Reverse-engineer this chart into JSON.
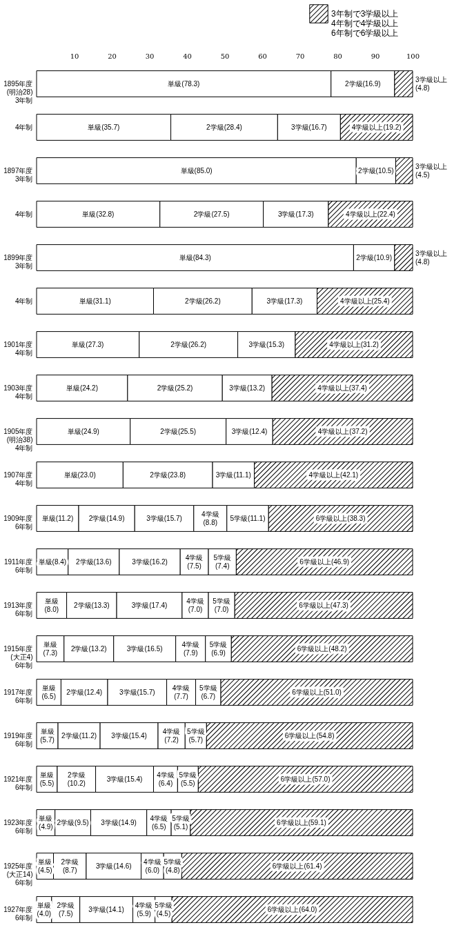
{
  "chart_data": {
    "type": "bar",
    "orientation": "horizontal",
    "stacked": true,
    "legend": "top right",
    "categories": [
      "1895年度 (明治28) 3年制",
      "4年制",
      "1897年度 3年制",
      "4年制",
      "1899年度 3年制",
      "4年制",
      "1901年度 4年制",
      "1903年度 4年制",
      "1905年度 (明治38) 4年制",
      "1907年度 4年制",
      "1909年度 6年制",
      "1911年度 6年制",
      "1913年度 6年制",
      "1915年度 (大正4) 6年制",
      "1917年度 6年制",
      "1919年度 6年制",
      "1921年度 6年制",
      "1923年度 6年制",
      "1925年度 (大正14) 6年制",
      "1927年度 6年制"
    ],
    "xlim": [
      0,
      100
    ],
    "xticks": [
      10,
      20,
      30,
      40,
      50,
      60,
      70,
      80,
      90,
      100
    ],
    "series": [
      {
        "color": "#ffffff",
        "values": [
          78.3,
          35.7,
          85.0,
          32.8,
          84.3,
          31.1,
          27.3,
          24.2,
          24.9,
          23.0,
          11.2,
          8.4,
          8.0,
          7.3,
          6.5,
          5.7,
          5.5,
          4.9,
          4.5,
          4.0
        ],
        "value_labels": [
          "単級(78.3)",
          "単級(35.7)",
          "単級(85.0)",
          "単級(32.8)",
          "単級(84.3)",
          "単級(31.1)",
          "単級(27.3)",
          "単級(24.2)",
          "単級(24.9)",
          "単級(23.0)",
          "単級(11.2)",
          "単級(8.4)",
          "単級(8.0)",
          "単級(7.3)",
          "単級(6.5)",
          "単級(5.7)",
          "単級(5.5)",
          "単級(4.9)",
          "単級(4.5)",
          "単級(4.0)"
        ]
      },
      {
        "color": "#ffffff",
        "values": [
          16.9,
          28.4,
          10.5,
          27.5,
          10.9,
          26.2,
          26.2,
          25.2,
          25.5,
          23.8,
          14.9,
          13.6,
          13.3,
          13.2,
          12.4,
          11.2,
          10.2,
          9.5,
          8.7,
          7.5
        ],
        "value_labels": [
          "2学級(16.9)",
          "2学級(28.4)",
          "2学級(10.5)",
          "2学級(27.5)",
          "2学級(10.9)",
          "2学級(26.2)",
          "2学級(26.2)",
          "2学級(25.2)",
          "2学級(25.5)",
          "2学級(23.8)",
          "2学級(14.9)",
          "2学級(13.6)",
          "2学級(13.3)",
          "2学級(13.2)",
          "2学級(12.4)",
          "2学級(11.2)",
          "2学級(10.2)",
          "2学級(9.5)",
          "2学級(8.7)",
          "2学級(7.5)"
        ]
      },
      {
        "color": "#ffffff",
        "values": [
          null,
          16.7,
          null,
          17.3,
          null,
          17.3,
          15.3,
          13.2,
          12.4,
          11.1,
          15.7,
          16.2,
          17.4,
          16.5,
          15.7,
          15.4,
          15.4,
          14.9,
          14.6,
          14.1
        ],
        "value_labels": [
          null,
          "3学級(16.7)",
          null,
          "3学級(17.3)",
          null,
          "3学級(17.3)",
          "3学級(15.3)",
          "3学級(13.2)",
          "3学級(12.4)",
          "3学級(11.1)",
          "3学級(15.7)",
          "3学級(16.2)",
          "3学級(17.4)",
          "3学級(16.5)",
          "3学級(15.7)",
          "3学級(15.4)",
          "3学級(15.4)",
          "3学級(14.9)",
          "3学級(14.6)",
          "3学級(14.1)"
        ]
      },
      {
        "color": "#ffffff",
        "values": [
          null,
          null,
          null,
          null,
          null,
          null,
          null,
          null,
          null,
          null,
          8.8,
          7.5,
          7.0,
          7.9,
          7.7,
          7.2,
          6.4,
          6.5,
          6.0,
          5.9
        ],
        "value_labels": [
          null,
          null,
          null,
          null,
          null,
          null,
          null,
          null,
          null,
          null,
          "4学級(8.8)",
          "4学級(7.5)",
          "4学級(7.0)",
          "4学級(7.9)",
          "4学級(7.7)",
          "4学級(7.2)",
          "4学級(6.4)",
          "4学級(6.5)",
          "4学級(6.0)",
          "4学級(5.9)"
        ]
      },
      {
        "color": "#ffffff",
        "values": [
          null,
          null,
          null,
          null,
          null,
          null,
          null,
          null,
          null,
          null,
          11.1,
          7.4,
          7.0,
          6.9,
          6.7,
          5.7,
          5.5,
          5.1,
          4.8,
          4.5
        ],
        "value_labels": [
          null,
          null,
          null,
          null,
          null,
          null,
          null,
          null,
          null,
          null,
          "5学級(11.1)",
          "5学級(7.4)",
          "5学級(7.0)",
          "5学級(6.9)",
          "5学級(6.7)",
          "5学級(5.7)",
          "5学級(5.5)",
          "5学級(5.1)",
          "5学級(4.8)",
          "5学級(4.5)"
        ]
      },
      {
        "name": "3年制で3学級以上\n4年制で4学級以上\n6年制で6学級以上",
        "color": "#000000",
        "values": [
          4.8,
          19.2,
          4.5,
          22.4,
          4.8,
          25.4,
          31.2,
          37.4,
          37.2,
          42.1,
          38.3,
          46.9,
          47.3,
          48.2,
          51.0,
          54.8,
          57.0,
          59.1,
          61.4,
          64.0
        ],
        "value_labels": [
          "3学級以上(4.8)",
          "4学級以上(19.2)",
          "3学級以上(4.5)",
          "4学級以上(22.4)",
          "3学級以上(4.8)",
          "4学級以上(25.4)",
          "4学級以上(31.2)",
          "4学級以上(37.4)",
          "4学級以上(37.2)",
          "4学級以上(42.1)",
          "6学級以上(38.3)",
          "6学級以上(46.9)",
          "6学級以上(47.3)",
          "6学級以上(48.2)",
          "6学級以上(51.0)",
          "6学級以上(54.8)",
          "6学級以上(57.0)",
          "6学級以上(59.1)",
          "6学級以上(61.4)",
          "6学級以上(64.0)"
        ]
      }
    ]
  }
}
